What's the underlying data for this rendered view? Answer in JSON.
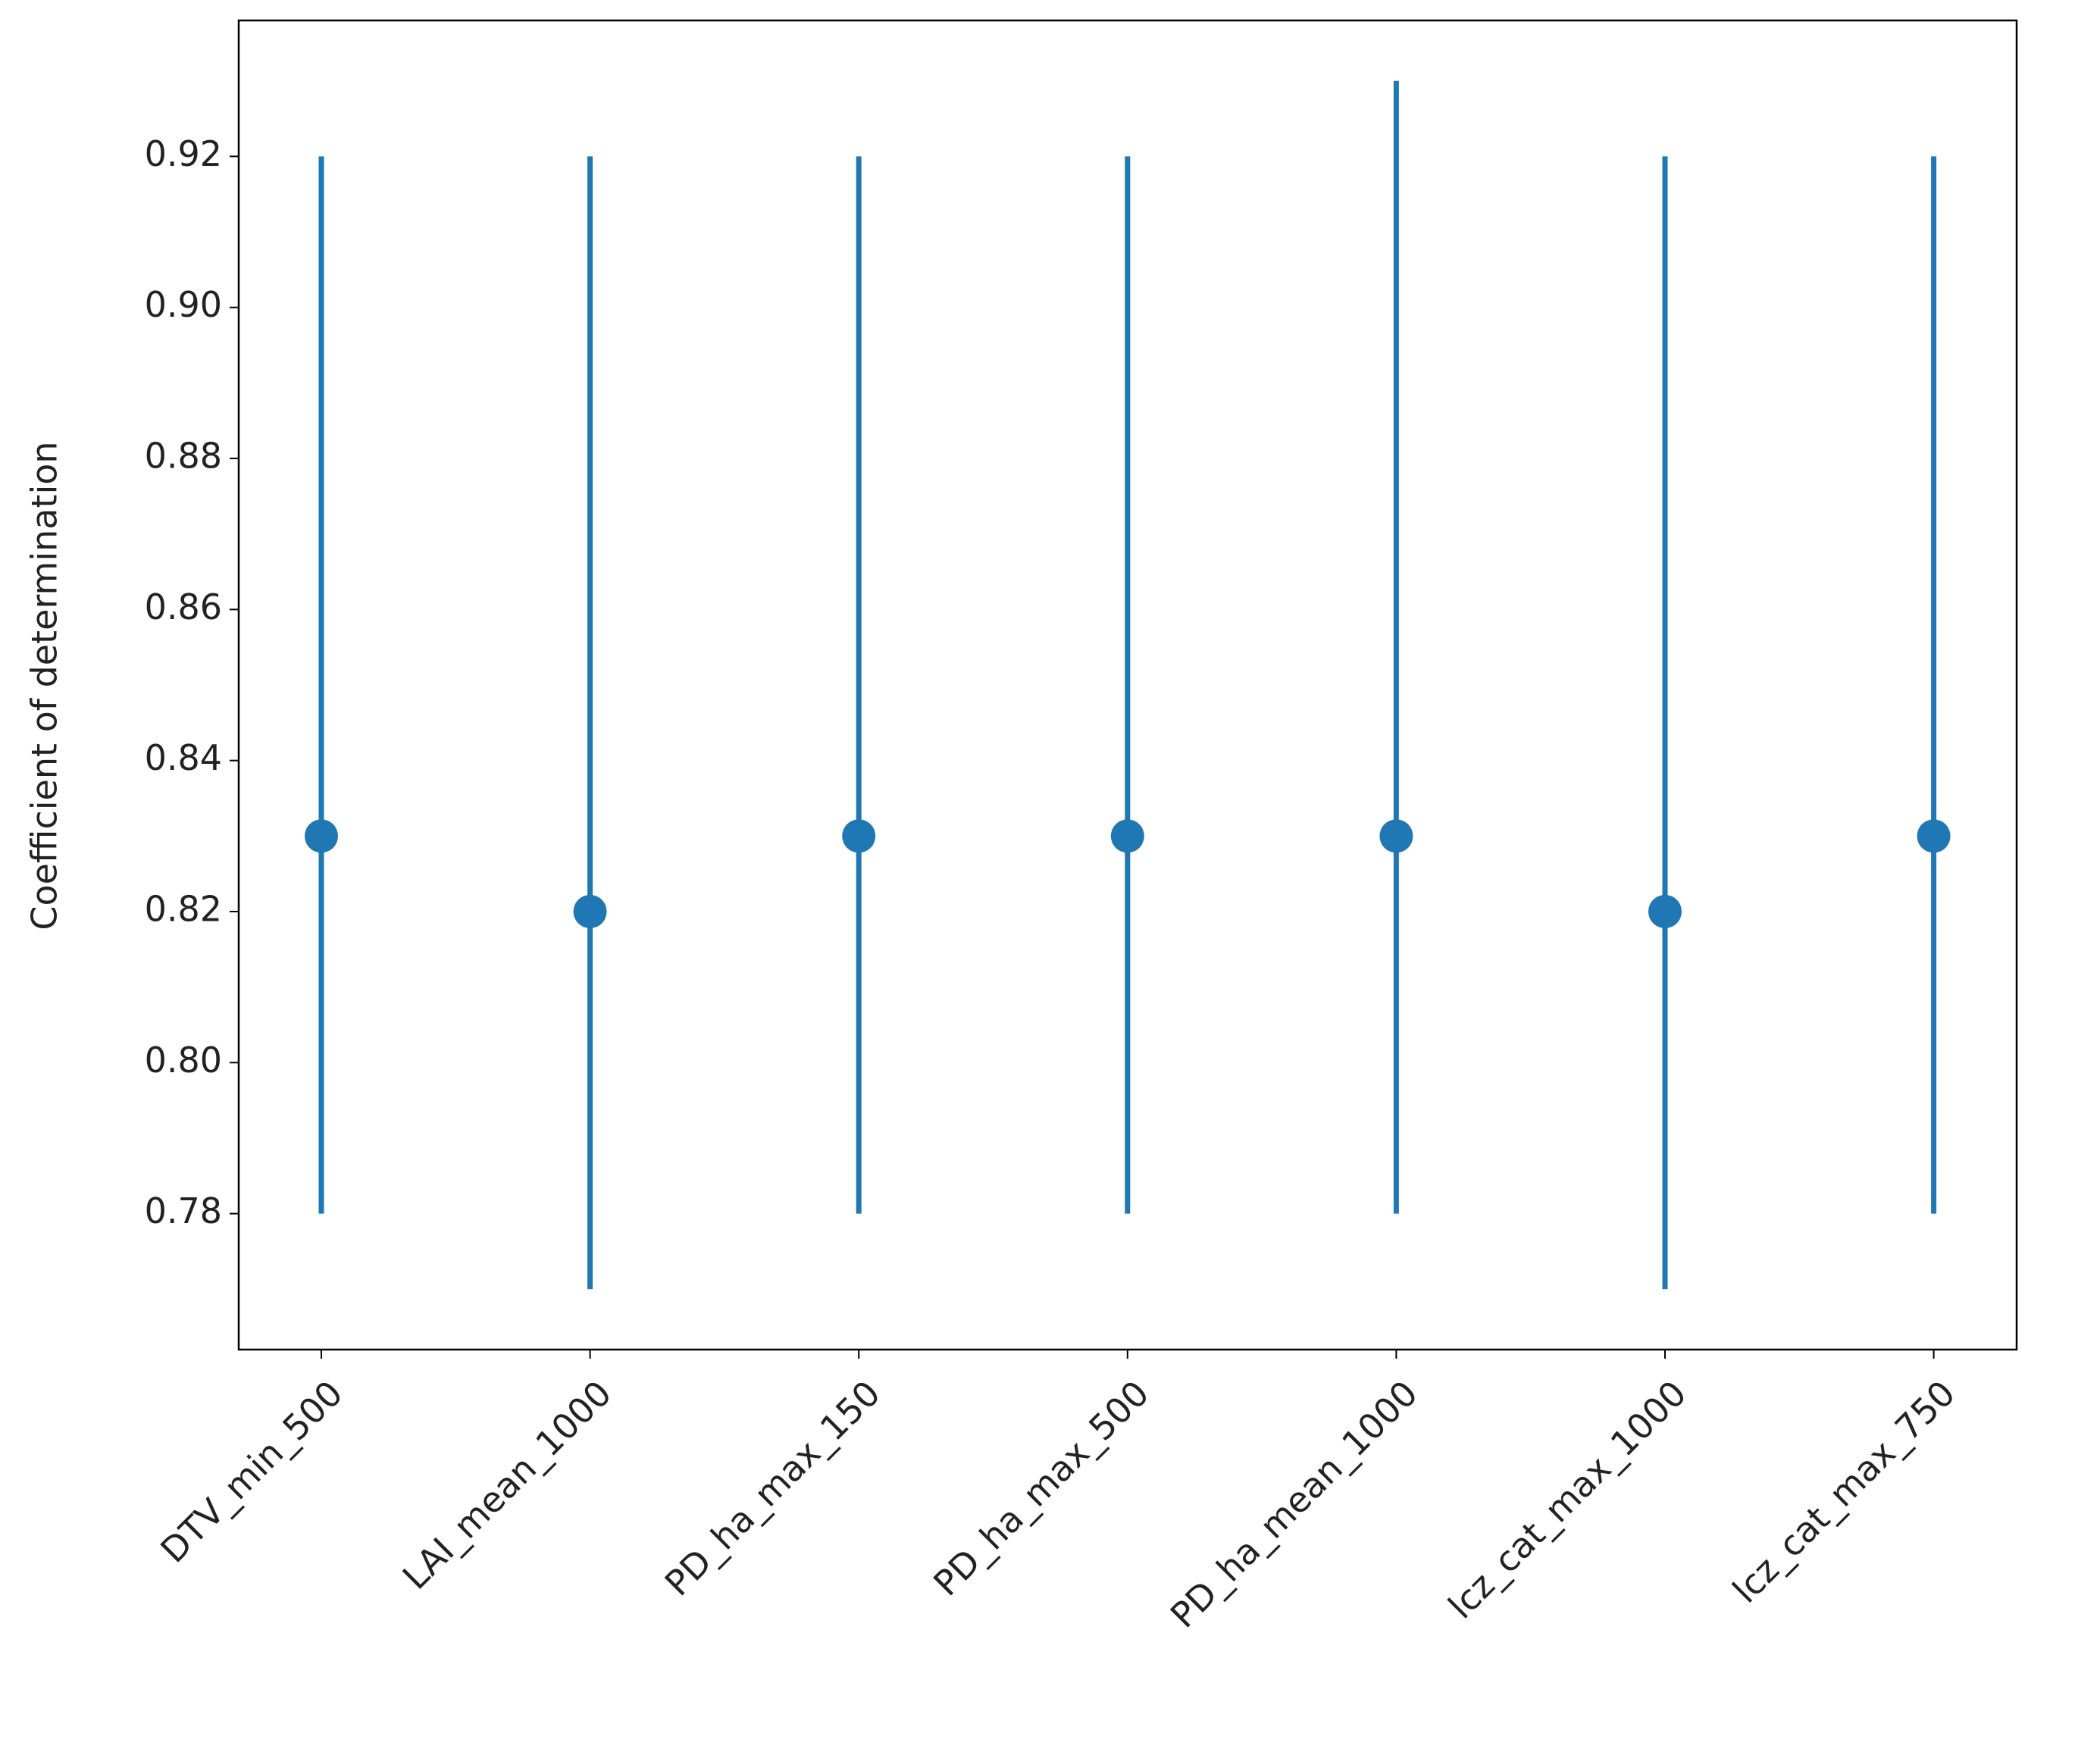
{
  "chart_data": {
    "type": "errorbar",
    "y_label": "Coefficient of determination",
    "categories": [
      "DTV_min_500",
      "LAI_mean_1000",
      "PD_ha_max_150",
      "PD_ha_max_500",
      "PD_ha_mean_1000",
      "lcz_cat_max_1000",
      "lcz_cat_max_750"
    ],
    "values": [
      0.83,
      0.82,
      0.83,
      0.83,
      0.83,
      0.82,
      0.83
    ],
    "lower": [
      0.78,
      0.77,
      0.78,
      0.78,
      0.78,
      0.77,
      0.78
    ],
    "upper": [
      0.92,
      0.92,
      0.92,
      0.92,
      0.93,
      0.92,
      0.92
    ],
    "color": "#1f77b4",
    "ylim": [
      0.762,
      0.938
    ],
    "yticks": [
      0.78,
      {
        "value": 0.8,
        "label": "0.80"
      },
      0.82,
      0.84,
      0.86,
      0.88,
      {
        "value": 0.9,
        "label": "0.90"
      },
      0.92
    ],
    "grid": false
  }
}
